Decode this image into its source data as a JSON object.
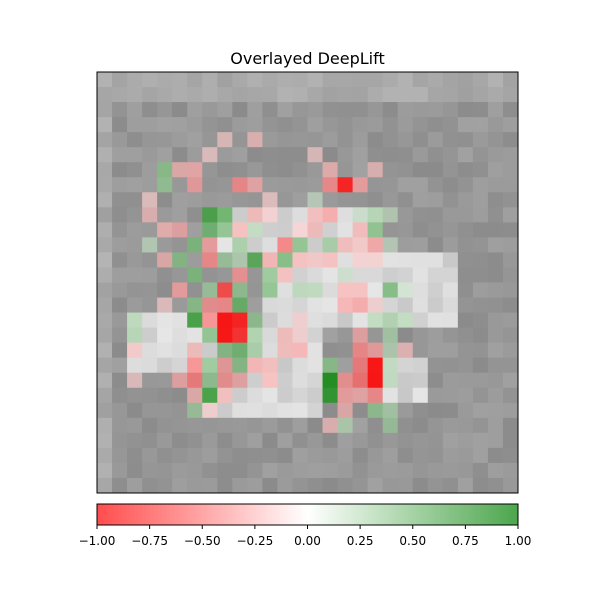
{
  "chart_data": {
    "type": "heatmap",
    "title": "Overlayed DeepLift",
    "grid": false,
    "colormap": {
      "negative_color": "#ff0000",
      "neutral_color": "#ffffff",
      "positive_color": "#008000"
    },
    "colorbar": {
      "orientation": "horizontal",
      "placement": "bottom",
      "range": [
        -1.0,
        1.0
      ],
      "ticks": [
        -1.0,
        -0.75,
        -0.5,
        -0.25,
        0.0,
        0.25,
        0.5,
        0.75,
        1.0
      ],
      "tick_labels": [
        "−1.00",
        "−0.75",
        "−0.50",
        "−0.25",
        "0.00",
        "0.25",
        "0.50",
        "0.75",
        "1.00"
      ]
    },
    "image_grid": {
      "rows": 28,
      "cols": 28
    },
    "attributions": [
      {
        "row": 7,
        "col": 16,
        "value": -0.9
      },
      {
        "row": 7,
        "col": 15,
        "value": -0.5
      },
      {
        "row": 7,
        "col": 17,
        "value": -0.4
      },
      {
        "row": 6,
        "col": 15,
        "value": -0.3
      },
      {
        "row": 6,
        "col": 18,
        "value": -0.25
      },
      {
        "row": 5,
        "col": 14,
        "value": -0.2
      },
      {
        "row": 4,
        "col": 10,
        "value": -0.25
      },
      {
        "row": 4,
        "col": 8,
        "value": -0.2
      },
      {
        "row": 5,
        "col": 7,
        "value": -0.2
      },
      {
        "row": 6,
        "col": 5,
        "value": -0.3
      },
      {
        "row": 6,
        "col": 6,
        "value": -0.35
      },
      {
        "row": 7,
        "col": 6,
        "value": -0.4
      },
      {
        "row": 7,
        "col": 9,
        "value": -0.5
      },
      {
        "row": 7,
        "col": 10,
        "value": -0.35
      },
      {
        "row": 6,
        "col": 4,
        "value": 0.5
      },
      {
        "row": 7,
        "col": 4,
        "value": 0.45
      },
      {
        "row": 8,
        "col": 11,
        "value": -0.2
      },
      {
        "row": 8,
        "col": 14,
        "value": 0.2
      },
      {
        "row": 9,
        "col": 7,
        "value": 0.75
      },
      {
        "row": 9,
        "col": 8,
        "value": 0.65
      },
      {
        "row": 10,
        "col": 7,
        "value": 0.6
      },
      {
        "row": 10,
        "col": 8,
        "value": 0.5
      },
      {
        "row": 9,
        "col": 10,
        "value": -0.3
      },
      {
        "row": 9,
        "col": 11,
        "value": -0.2
      },
      {
        "row": 9,
        "col": 14,
        "value": -0.3
      },
      {
        "row": 9,
        "col": 15,
        "value": -0.4
      },
      {
        "row": 9,
        "col": 17,
        "value": 0.2
      },
      {
        "row": 9,
        "col": 18,
        "value": 0.35
      },
      {
        "row": 9,
        "col": 19,
        "value": 0.25
      },
      {
        "row": 10,
        "col": 4,
        "value": -0.3
      },
      {
        "row": 10,
        "col": 5,
        "value": -0.35
      },
      {
        "row": 10,
        "col": 9,
        "value": -0.3
      },
      {
        "row": 10,
        "col": 10,
        "value": 0.3
      },
      {
        "row": 10,
        "col": 13,
        "value": -0.2
      },
      {
        "row": 10,
        "col": 14,
        "value": -0.3
      },
      {
        "row": 10,
        "col": 17,
        "value": -0.3
      },
      {
        "row": 10,
        "col": 18,
        "value": 0.5
      },
      {
        "row": 11,
        "col": 6,
        "value": 0.55
      },
      {
        "row": 11,
        "col": 7,
        "value": -0.4
      },
      {
        "row": 11,
        "col": 9,
        "value": 0.4
      },
      {
        "row": 11,
        "col": 12,
        "value": -0.55
      },
      {
        "row": 11,
        "col": 13,
        "value": 0.5
      },
      {
        "row": 11,
        "col": 15,
        "value": 0.4
      },
      {
        "row": 11,
        "col": 16,
        "value": -0.3
      },
      {
        "row": 11,
        "col": 17,
        "value": -0.25
      },
      {
        "row": 11,
        "col": 18,
        "value": -0.4
      },
      {
        "row": 11,
        "col": 19,
        "value": 0.2
      },
      {
        "row": 12,
        "col": 5,
        "value": 0.5
      },
      {
        "row": 12,
        "col": 7,
        "value": -0.5
      },
      {
        "row": 12,
        "col": 8,
        "value": 0.4
      },
      {
        "row": 12,
        "col": 10,
        "value": 0.7
      },
      {
        "row": 12,
        "col": 11,
        "value": -0.35
      },
      {
        "row": 12,
        "col": 12,
        "value": 0.55
      },
      {
        "row": 12,
        "col": 13,
        "value": -0.3
      },
      {
        "row": 12,
        "col": 14,
        "value": -0.25
      },
      {
        "row": 12,
        "col": 15,
        "value": -0.3
      },
      {
        "row": 12,
        "col": 17,
        "value": -0.2
      },
      {
        "row": 12,
        "col": 18,
        "value": -0.2
      },
      {
        "row": 13,
        "col": 6,
        "value": 0.55
      },
      {
        "row": 13,
        "col": 9,
        "value": -0.45
      },
      {
        "row": 13,
        "col": 11,
        "value": 0.45
      },
      {
        "row": 13,
        "col": 12,
        "value": -0.3
      },
      {
        "row": 14,
        "col": 5,
        "value": -0.4
      },
      {
        "row": 14,
        "col": 7,
        "value": 0.4
      },
      {
        "row": 14,
        "col": 8,
        "value": -0.75
      },
      {
        "row": 14,
        "col": 9,
        "value": 0.45
      },
      {
        "row": 14,
        "col": 11,
        "value": 0.5
      },
      {
        "row": 14,
        "col": 13,
        "value": 0.3
      },
      {
        "row": 14,
        "col": 14,
        "value": 0.3
      },
      {
        "row": 14,
        "col": 16,
        "value": -0.3
      },
      {
        "row": 14,
        "col": 17,
        "value": -0.3
      },
      {
        "row": 14,
        "col": 19,
        "value": 0.55
      },
      {
        "row": 14,
        "col": 20,
        "value": 0.2
      },
      {
        "row": 15,
        "col": 6,
        "value": 0.5
      },
      {
        "row": 15,
        "col": 7,
        "value": -0.45
      },
      {
        "row": 15,
        "col": 8,
        "value": -0.5
      },
      {
        "row": 15,
        "col": 9,
        "value": 0.65
      },
      {
        "row": 15,
        "col": 16,
        "value": -0.35
      },
      {
        "row": 15,
        "col": 17,
        "value": -0.4
      },
      {
        "row": 15,
        "col": 18,
        "value": -0.2
      },
      {
        "row": 16,
        "col": 6,
        "value": 0.8
      },
      {
        "row": 16,
        "col": 7,
        "value": -0.5
      },
      {
        "row": 16,
        "col": 8,
        "value": -0.95
      },
      {
        "row": 16,
        "col": 9,
        "value": -0.9
      },
      {
        "row": 16,
        "col": 10,
        "value": 0.45
      },
      {
        "row": 16,
        "col": 13,
        "value": -0.2
      },
      {
        "row": 16,
        "col": 18,
        "value": 0.3
      },
      {
        "row": 16,
        "col": 19,
        "value": 0.35
      },
      {
        "row": 16,
        "col": 20,
        "value": 0.3
      },
      {
        "row": 17,
        "col": 7,
        "value": 0.5
      },
      {
        "row": 17,
        "col": 8,
        "value": -0.95
      },
      {
        "row": 17,
        "col": 9,
        "value": -0.85
      },
      {
        "row": 17,
        "col": 10,
        "value": 0.4
      },
      {
        "row": 17,
        "col": 12,
        "value": -0.3
      },
      {
        "row": 17,
        "col": 13,
        "value": -0.2
      },
      {
        "row": 17,
        "col": 17,
        "value": -0.35
      },
      {
        "row": 17,
        "col": 19,
        "value": 0.35
      },
      {
        "row": 18,
        "col": 6,
        "value": -0.3
      },
      {
        "row": 18,
        "col": 8,
        "value": 0.5
      },
      {
        "row": 18,
        "col": 9,
        "value": 0.6
      },
      {
        "row": 18,
        "col": 10,
        "value": 0.4
      },
      {
        "row": 18,
        "col": 12,
        "value": -0.3
      },
      {
        "row": 18,
        "col": 13,
        "value": -0.35
      },
      {
        "row": 18,
        "col": 17,
        "value": -0.5
      },
      {
        "row": 18,
        "col": 18,
        "value": -0.4
      },
      {
        "row": 18,
        "col": 19,
        "value": 0.3
      },
      {
        "row": 18,
        "col": 20,
        "value": -0.25
      },
      {
        "row": 19,
        "col": 6,
        "value": -0.5
      },
      {
        "row": 19,
        "col": 7,
        "value": 0.45
      },
      {
        "row": 19,
        "col": 8,
        "value": -0.4
      },
      {
        "row": 19,
        "col": 9,
        "value": 0.5
      },
      {
        "row": 19,
        "col": 10,
        "value": -0.35
      },
      {
        "row": 19,
        "col": 11,
        "value": -0.3
      },
      {
        "row": 19,
        "col": 15,
        "value": 0.5
      },
      {
        "row": 19,
        "col": 17,
        "value": -0.55
      },
      {
        "row": 19,
        "col": 18,
        "value": -0.95
      },
      {
        "row": 19,
        "col": 19,
        "value": 0.3
      },
      {
        "row": 20,
        "col": 5,
        "value": -0.35
      },
      {
        "row": 20,
        "col": 6,
        "value": -0.55
      },
      {
        "row": 20,
        "col": 7,
        "value": 0.45
      },
      {
        "row": 20,
        "col": 8,
        "value": -0.45
      },
      {
        "row": 20,
        "col": 9,
        "value": -0.35
      },
      {
        "row": 20,
        "col": 11,
        "value": -0.3
      },
      {
        "row": 20,
        "col": 15,
        "value": 0.9
      },
      {
        "row": 20,
        "col": 16,
        "value": -0.45
      },
      {
        "row": 20,
        "col": 17,
        "value": -0.6
      },
      {
        "row": 20,
        "col": 18,
        "value": -0.95
      },
      {
        "row": 20,
        "col": 19,
        "value": 0.3
      },
      {
        "row": 21,
        "col": 6,
        "value": -0.3
      },
      {
        "row": 21,
        "col": 7,
        "value": 0.8
      },
      {
        "row": 21,
        "col": 8,
        "value": -0.3
      },
      {
        "row": 21,
        "col": 15,
        "value": 0.85
      },
      {
        "row": 21,
        "col": 16,
        "value": -0.4
      },
      {
        "row": 21,
        "col": 17,
        "value": -0.35
      },
      {
        "row": 21,
        "col": 18,
        "value": -0.5
      },
      {
        "row": 22,
        "col": 6,
        "value": 0.4
      },
      {
        "row": 22,
        "col": 7,
        "value": -0.2
      },
      {
        "row": 22,
        "col": 16,
        "value": -0.3
      },
      {
        "row": 22,
        "col": 18,
        "value": 0.45
      },
      {
        "row": 22,
        "col": 19,
        "value": 0.35
      },
      {
        "row": 23,
        "col": 15,
        "value": -0.25
      },
      {
        "row": 23,
        "col": 16,
        "value": 0.3
      },
      {
        "row": 23,
        "col": 19,
        "value": 0.4
      },
      {
        "row": 12,
        "col": 9,
        "value": 0.3
      },
      {
        "row": 13,
        "col": 16,
        "value": 0.2
      },
      {
        "row": 8,
        "col": 3,
        "value": -0.2
      },
      {
        "row": 9,
        "col": 3,
        "value": -0.25
      },
      {
        "row": 11,
        "col": 3,
        "value": 0.25
      },
      {
        "row": 12,
        "col": 4,
        "value": -0.3
      },
      {
        "row": 15,
        "col": 4,
        "value": -0.2
      },
      {
        "row": 16,
        "col": 2,
        "value": 0.3
      },
      {
        "row": 17,
        "col": 2,
        "value": 0.35
      },
      {
        "row": 18,
        "col": 2,
        "value": -0.25
      },
      {
        "row": 20,
        "col": 2,
        "value": -0.2
      }
    ]
  }
}
